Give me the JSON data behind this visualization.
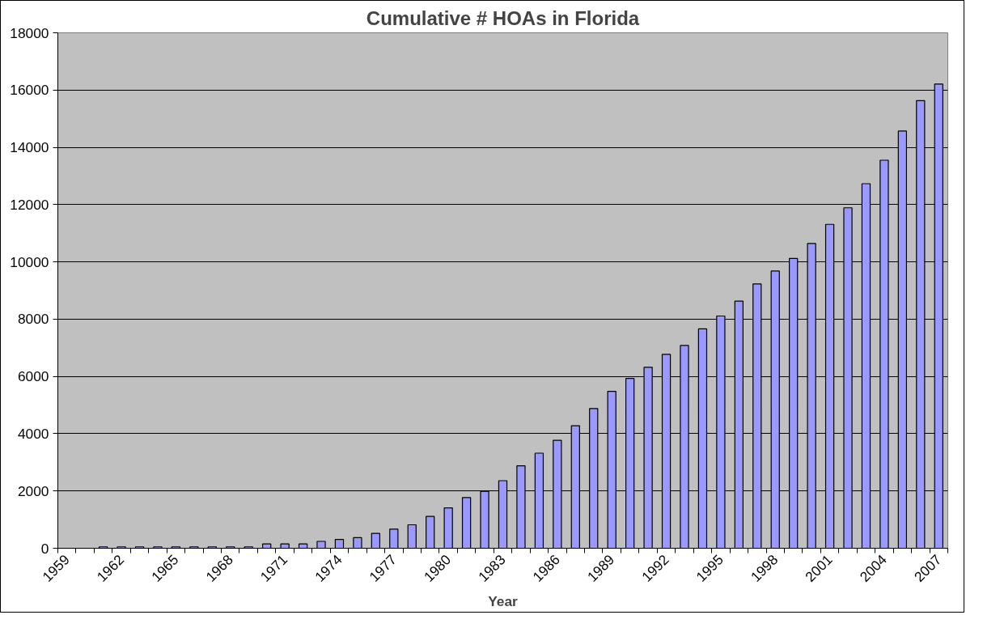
{
  "chart_data": {
    "type": "bar",
    "title": "Cumulative # HOAs in Florida",
    "xlabel": "Year",
    "categories": [
      "1959",
      null,
      null,
      "1962",
      null,
      null,
      "1965",
      null,
      null,
      "1968",
      null,
      null,
      "1971",
      null,
      null,
      "1974",
      null,
      null,
      "1977",
      null,
      null,
      "1980",
      null,
      null,
      "1983",
      null,
      null,
      "1986",
      null,
      null,
      "1989",
      null,
      null,
      "1992",
      null,
      null,
      "1995",
      null,
      null,
      "1998",
      null,
      null,
      "2001",
      null,
      null,
      "2004",
      null,
      null,
      "2007"
    ],
    "series": [
      {
        "color": "#9999ff",
        "values": [
          null,
          null,
          50,
          50,
          50,
          50,
          50,
          50,
          50,
          50,
          50,
          150,
          150,
          150,
          240,
          310,
          370,
          520,
          670,
          820,
          1110,
          1410,
          1770,
          1990,
          2360,
          2880,
          3320,
          3770,
          4280,
          4880,
          5480,
          5930,
          6320,
          6770,
          7080,
          7660,
          8110,
          8630,
          9230,
          9680,
          10120,
          10640,
          11310,
          11890,
          12730,
          13550,
          14570,
          15630,
          16210
        ]
      }
    ],
    "ylim": [
      0,
      18000
    ],
    "yticks": [
      0,
      2000,
      4000,
      6000,
      8000,
      10000,
      12000,
      14000,
      16000,
      18000
    ],
    "grid": "y"
  }
}
